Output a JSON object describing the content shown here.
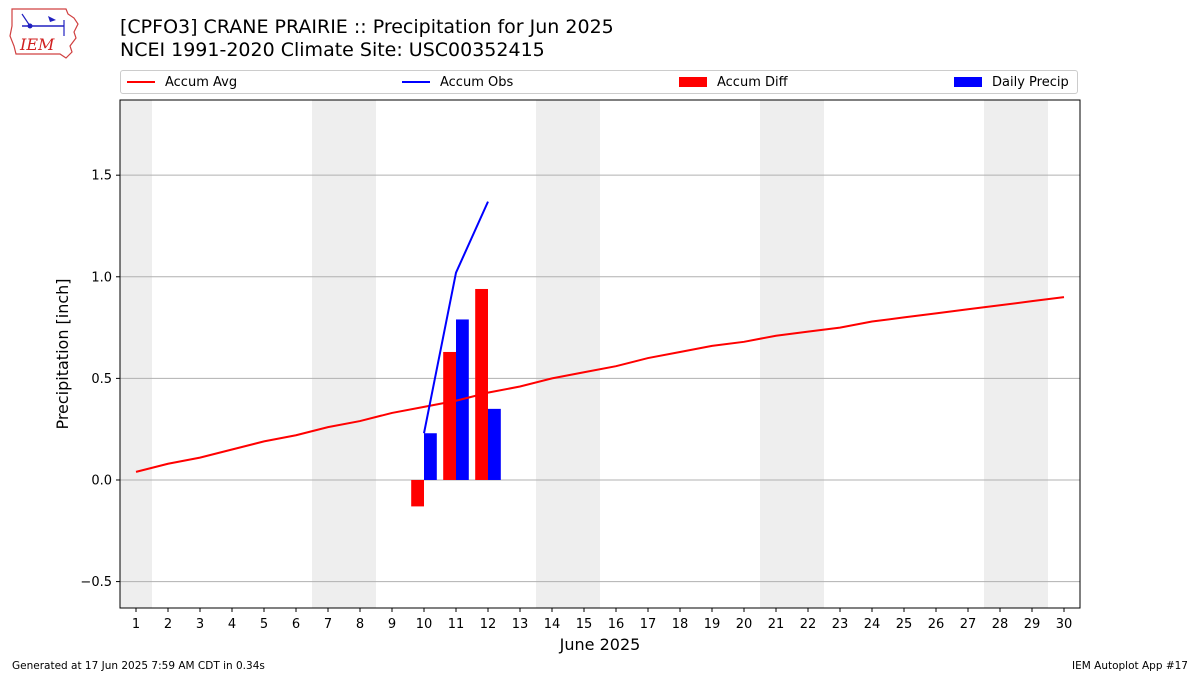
{
  "logo": {
    "text": "IEM",
    "icon": "iem-iowa-logo-icon"
  },
  "title": {
    "line1": "[CPFO3] CRANE PRAIRIE :: Precipitation for Jun 2025",
    "line2": "NCEI 1991-2020 Climate Site: USC00352415"
  },
  "legend": {
    "accum_avg": "Accum Avg",
    "accum_obs": "Accum Obs",
    "accum_diff": "Accum Diff",
    "daily_precip": "Daily Precip"
  },
  "colors": {
    "avg": "#ff0000",
    "obs": "#0000ff",
    "diff": "#ff0000",
    "daily": "#0000ff",
    "weekend": "#eeeeee",
    "grid": "#b0b0b0"
  },
  "footer": {
    "left": "Generated at 17 Jun 2025 7:59 AM CDT in 0.34s",
    "right": "IEM Autoplot App #17"
  },
  "chart_data": {
    "type": "bar",
    "xlabel": "June 2025",
    "ylabel": "Precipitation [inch]",
    "xlim": [
      0.5,
      30.5
    ],
    "ylim": [
      -0.63,
      1.87
    ],
    "yticks": [
      -0.5,
      0.0,
      0.5,
      1.0,
      1.5
    ],
    "ytick_labels": [
      "−0.5",
      "0.0",
      "0.5",
      "1.0",
      "1.5"
    ],
    "days": [
      1,
      2,
      3,
      4,
      5,
      6,
      7,
      8,
      9,
      10,
      11,
      12,
      13,
      14,
      15,
      16,
      17,
      18,
      19,
      20,
      21,
      22,
      23,
      24,
      25,
      26,
      27,
      28,
      29,
      30
    ],
    "weekend_bands": [
      [
        0.5,
        1.5
      ],
      [
        6.5,
        8.5
      ],
      [
        13.5,
        15.5
      ],
      [
        20.5,
        22.5
      ],
      [
        27.5,
        29.5
      ]
    ],
    "grid": true,
    "legend_position": "top",
    "series": [
      {
        "name": "Accum Avg",
        "kind": "line",
        "x": [
          1,
          2,
          3,
          4,
          5,
          6,
          7,
          8,
          9,
          10,
          11,
          12,
          13,
          14,
          15,
          16,
          17,
          18,
          19,
          20,
          21,
          22,
          23,
          24,
          25,
          26,
          27,
          28,
          29,
          30
        ],
        "values": [
          0.04,
          0.08,
          0.11,
          0.15,
          0.19,
          0.22,
          0.26,
          0.29,
          0.33,
          0.36,
          0.39,
          0.43,
          0.46,
          0.5,
          0.53,
          0.56,
          0.6,
          0.63,
          0.66,
          0.68,
          0.71,
          0.73,
          0.75,
          0.78,
          0.8,
          0.82,
          0.84,
          0.86,
          0.88,
          0.9
        ]
      },
      {
        "name": "Accum Obs",
        "kind": "line",
        "x": [
          10,
          11,
          12
        ],
        "values": [
          0.23,
          1.02,
          1.37
        ]
      },
      {
        "name": "Accum Diff",
        "kind": "bar",
        "x": [
          10,
          11,
          12
        ],
        "values": [
          -0.13,
          0.63,
          0.94
        ]
      },
      {
        "name": "Daily Precip",
        "kind": "bar",
        "x": [
          10,
          11,
          12
        ],
        "values": [
          0.23,
          0.79,
          0.35
        ]
      }
    ]
  }
}
